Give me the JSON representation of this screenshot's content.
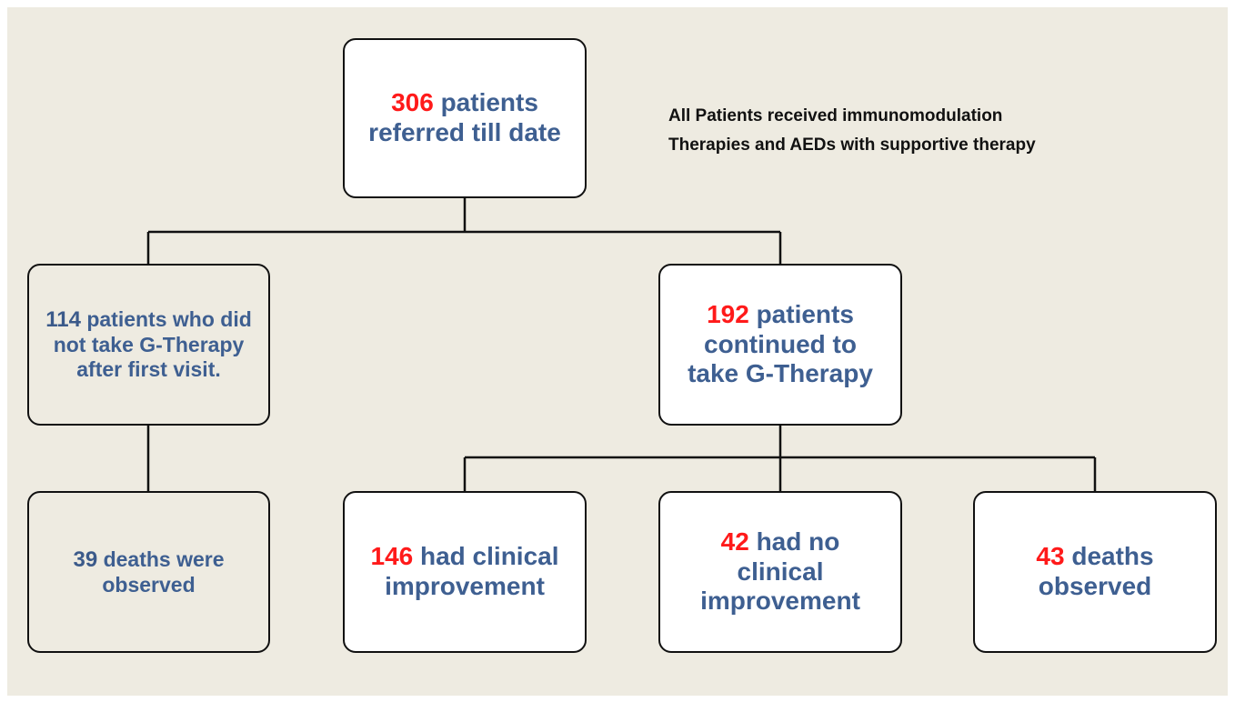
{
  "nodes": [
    {
      "number": 306,
      "text": "patients referred till date"
    },
    {
      "number": 114,
      "text": "patients who did not take G-Therapy after first visit."
    },
    {
      "number": 192,
      "text": "patients continued to take G-Therapy"
    },
    {
      "number": 39,
      "text": "deaths were observed"
    },
    {
      "number": 146,
      "text": "had clinical improvement"
    },
    {
      "number": 42,
      "text": "had no clinical improvement"
    },
    {
      "number": 43,
      "text": "deaths observed"
    }
  ],
  "note": {
    "lines": [
      "All Patients received immunomodulation",
      "Therapies and AEDs with supportive therapy"
    ]
  }
}
